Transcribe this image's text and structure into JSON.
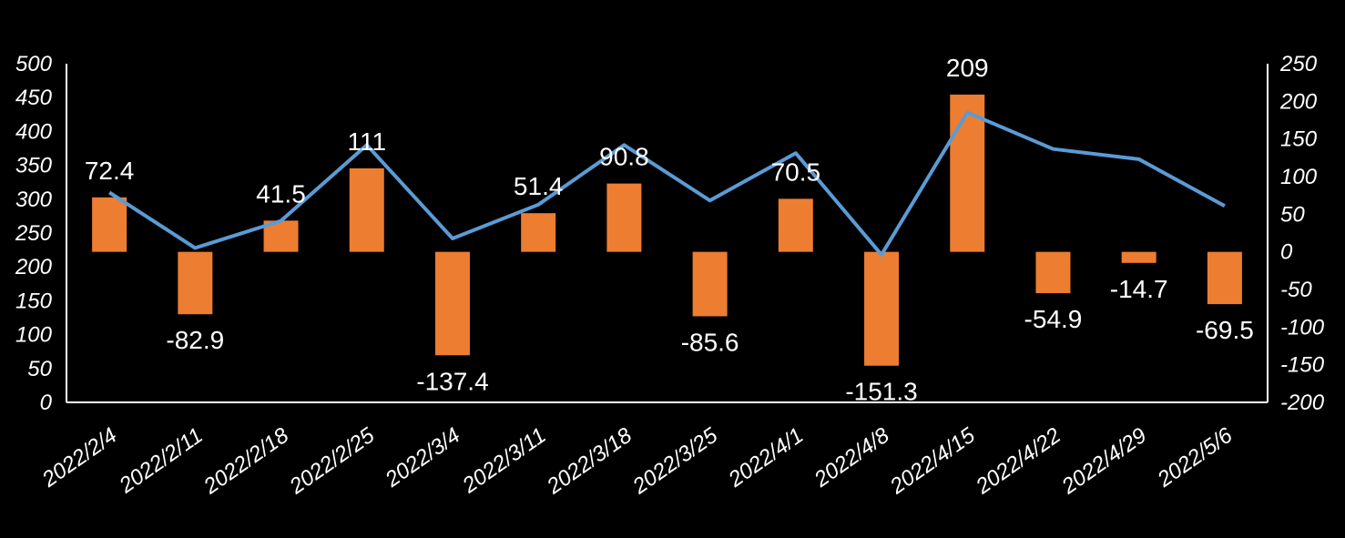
{
  "chart_data": {
    "type": "bar+line",
    "categories": [
      "2022/2/4",
      "2022/2/11",
      "2022/2/18",
      "2022/2/25",
      "2022/3/4",
      "2022/3/11",
      "2022/3/18",
      "2022/3/25",
      "2022/4/1",
      "2022/4/8",
      "2022/4/15",
      "2022/4/22",
      "2022/4/29",
      "2022/5/6"
    ],
    "series": [
      {
        "name": "bar",
        "axis": "right",
        "color": "#ED7D31",
        "values": [
          72.4,
          -82.9,
          41.5,
          111,
          -137.4,
          51.4,
          90.8,
          -85.6,
          70.5,
          -151.3,
          209,
          -54.9,
          -14.7,
          -69.5
        ],
        "labels": [
          "72.4",
          "-82.9",
          "41.5",
          "111",
          "-137.4",
          "51.4",
          "90.8",
          "-85.6",
          "70.5",
          "-151.3",
          "209",
          "-54.9",
          "-14.7",
          "-69.5"
        ]
      },
      {
        "name": "line",
        "axis": "left",
        "color": "#5B9BD5",
        "values": [
          310,
          228,
          268,
          380,
          242,
          292,
          380,
          298,
          368,
          218,
          428,
          374,
          359,
          290
        ]
      }
    ],
    "y_left": {
      "min": 0,
      "max": 500,
      "ticks": [
        "500",
        "450",
        "400",
        "350",
        "300",
        "250",
        "200",
        "150",
        "100",
        "50",
        "0"
      ]
    },
    "y_right": {
      "min": -200,
      "max": 250,
      "ticks": [
        "250",
        "200",
        "150",
        "100",
        "50",
        "0",
        "-50",
        "-100",
        "-150",
        "-200"
      ]
    }
  }
}
